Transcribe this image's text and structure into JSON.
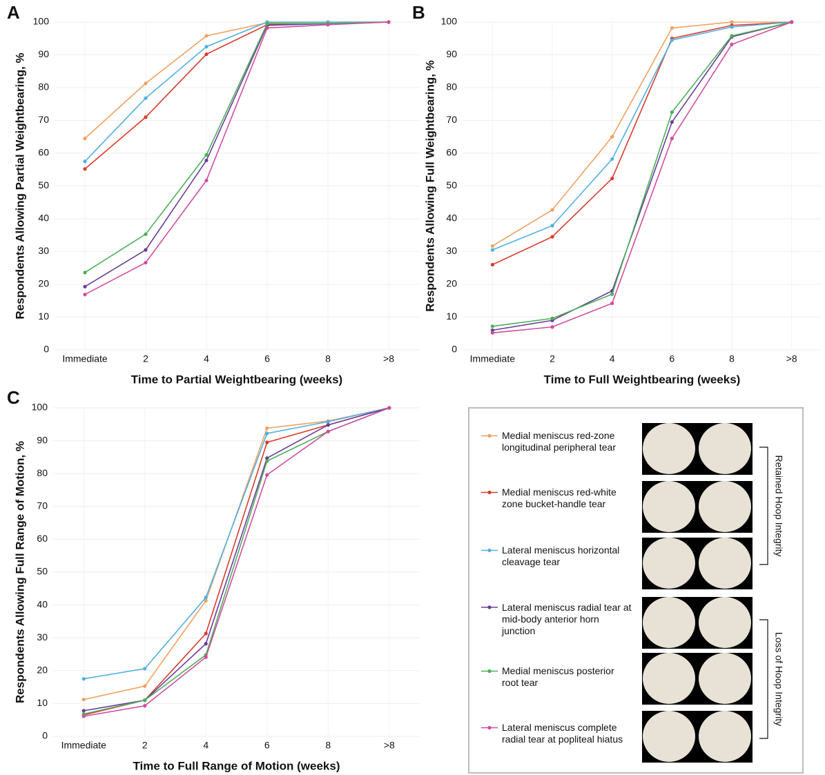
{
  "chart_data": [
    {
      "type": "line",
      "panel": "A",
      "y_label": "Respondents Allowing Partial Weightbearing, %",
      "x_label": "Time to Partial Weightbearing (weeks)",
      "categories": [
        "Immediate",
        "2",
        "4",
        "6",
        "8",
        ">8"
      ],
      "ylim": [
        0,
        100
      ],
      "yticks": [
        0,
        10,
        20,
        30,
        40,
        50,
        60,
        70,
        80,
        90,
        100
      ],
      "grid": true,
      "series": [
        {
          "name": "Medial meniscus red-zone longitudinal peripheral tear",
          "color": "#f0a060",
          "values": [
            64.5,
            81.3,
            95.8,
            99.8,
            100,
            100
          ]
        },
        {
          "name": "Medial meniscus red-white zone bucket-handle tear",
          "color": "#d93a2b",
          "values": [
            55.2,
            71,
            90.2,
            99.2,
            99.5,
            100
          ]
        },
        {
          "name": "Lateral meniscus horizontal cleavage tear",
          "color": "#4fb0e0",
          "values": [
            57.5,
            76.8,
            92.5,
            100,
            100,
            100
          ]
        },
        {
          "name": "Lateral meniscus radial tear at mid-body anterior horn junction",
          "color": "#6a3d9a",
          "values": [
            19.3,
            30.5,
            57.8,
            99,
            99.5,
            100
          ]
        },
        {
          "name": "Medial meniscus posterior root tear",
          "color": "#4caf5a",
          "values": [
            23.6,
            35.3,
            59.5,
            99.5,
            99.6,
            100
          ]
        },
        {
          "name": "Lateral meniscus complete radial tear at popliteal hiatus",
          "color": "#d04ca0",
          "values": [
            16.9,
            26.6,
            51.7,
            98.2,
            99.2,
            100
          ]
        }
      ]
    },
    {
      "type": "line",
      "panel": "B",
      "y_label": "Respondents Allowing Full Weightbearing, %",
      "x_label": "Time to Full Weightbearing (weeks)",
      "categories": [
        "Immediate",
        "2",
        "4",
        "6",
        "8",
        ">8"
      ],
      "ylim": [
        0,
        100
      ],
      "yticks": [
        0,
        10,
        20,
        30,
        40,
        50,
        60,
        70,
        80,
        90,
        100
      ],
      "grid": true,
      "series": [
        {
          "color": "#f0a060",
          "values": [
            31.7,
            42.7,
            65,
            98.2,
            100,
            100
          ]
        },
        {
          "color": "#d93a2b",
          "values": [
            26,
            34.5,
            52.3,
            95,
            99,
            100
          ]
        },
        {
          "color": "#4fb0e0",
          "values": [
            30.5,
            37.9,
            58.2,
            94.5,
            98.5,
            100
          ]
        },
        {
          "color": "#6a3d9a",
          "values": [
            6,
            9,
            18,
            69.5,
            95.5,
            100
          ]
        },
        {
          "color": "#4caf5a",
          "values": [
            7.2,
            9.6,
            17,
            72.5,
            95.8,
            100
          ]
        },
        {
          "color": "#d04ca0",
          "values": [
            5.2,
            7,
            14.2,
            64.5,
            93.2,
            100
          ]
        }
      ]
    },
    {
      "type": "line",
      "panel": "C",
      "y_label": "Respondents Allowing Full Range of Motion, %",
      "x_label": "Time to Full Range of Motion (weeks)",
      "categories": [
        "Immediate",
        "2",
        "4",
        "6",
        "8",
        ">8"
      ],
      "ylim": [
        0,
        100
      ],
      "yticks": [
        0,
        10,
        20,
        30,
        40,
        50,
        60,
        70,
        80,
        90,
        100
      ],
      "grid": true,
      "series": [
        {
          "color": "#f0a060",
          "values": [
            11.2,
            15.3,
            41.3,
            93.8,
            96,
            100
          ]
        },
        {
          "color": "#d93a2b",
          "values": [
            6.5,
            11,
            31.3,
            89.5,
            94.8,
            100
          ]
        },
        {
          "color": "#4fb0e0",
          "values": [
            17.5,
            20.6,
            42.3,
            92.2,
            95.8,
            100
          ]
        },
        {
          "color": "#6a3d9a",
          "values": [
            7.8,
            11,
            28.2,
            84.7,
            94.8,
            100
          ]
        },
        {
          "color": "#4caf5a",
          "values": [
            6.8,
            11,
            24.8,
            83.8,
            92.8,
            100
          ]
        },
        {
          "color": "#d04ca0",
          "values": [
            6.1,
            9.3,
            24.1,
            79.6,
            92.8,
            100
          ]
        }
      ]
    }
  ],
  "legend": {
    "groups": [
      "Retained Hoop Integrity",
      "Loss of Hoop Integrity"
    ]
  }
}
